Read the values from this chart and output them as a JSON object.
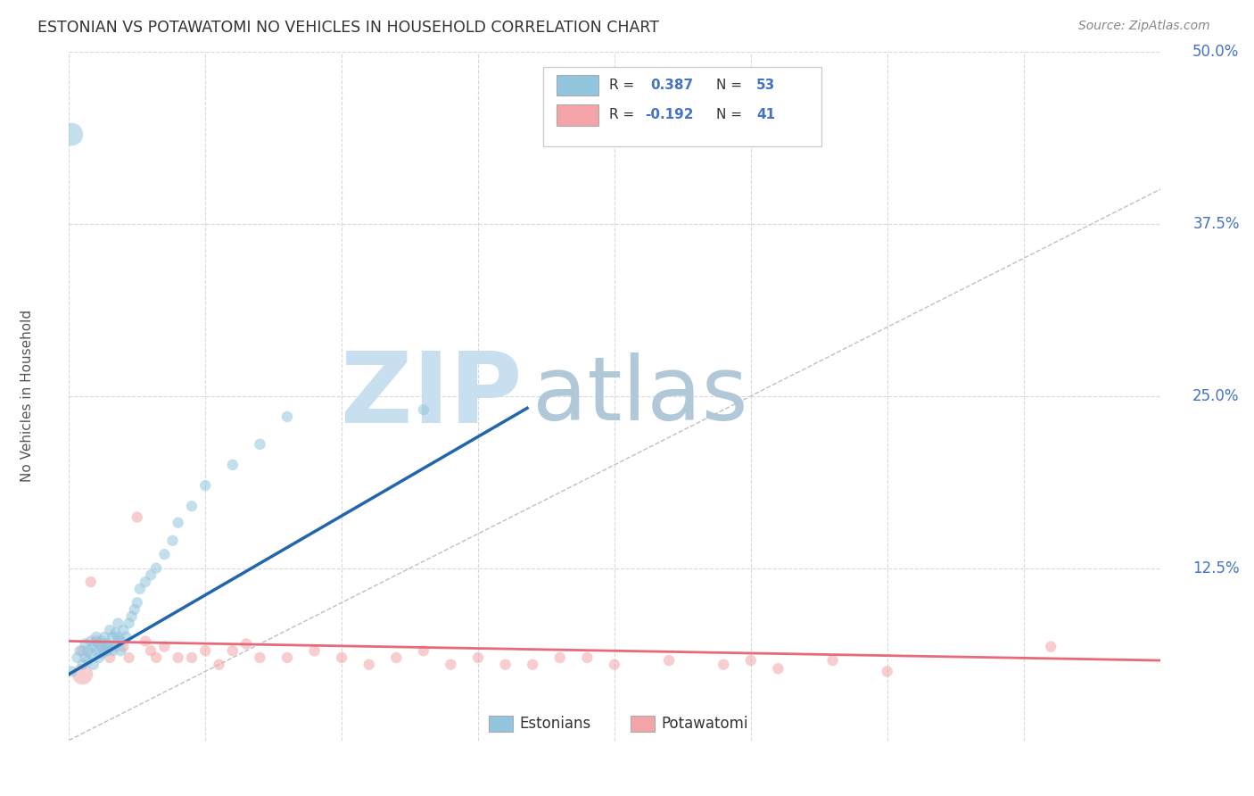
{
  "title": "ESTONIAN VS POTAWATOMI NO VEHICLES IN HOUSEHOLD CORRELATION CHART",
  "source": "Source: ZipAtlas.com",
  "ylabel": "No Vehicles in Household",
  "xlim": [
    0.0,
    0.4
  ],
  "ylim": [
    0.0,
    0.5
  ],
  "blue_R": 0.387,
  "blue_N": 53,
  "pink_R": -0.192,
  "pink_N": 41,
  "blue_color": "#92c5de",
  "pink_color": "#f4a4a8",
  "blue_line_color": "#2166ac",
  "pink_line_color": "#e8697a",
  "title_color": "#333333",
  "axis_label_color": "#555555",
  "tick_color": "#4472c4",
  "grid_color": "#d0d0d0",
  "watermark_zip_color": "#c8dff0",
  "watermark_atlas_color": "#b0c8d8",
  "legend_label_blue": "Estonians",
  "legend_label_pink": "Potawatomi",
  "blue_scatter_x": [
    0.001,
    0.003,
    0.004,
    0.005,
    0.006,
    0.006,
    0.007,
    0.007,
    0.008,
    0.008,
    0.009,
    0.009,
    0.01,
    0.01,
    0.011,
    0.011,
    0.012,
    0.012,
    0.013,
    0.013,
    0.014,
    0.014,
    0.014,
    0.015,
    0.015,
    0.016,
    0.016,
    0.017,
    0.017,
    0.018,
    0.018,
    0.019,
    0.019,
    0.02,
    0.021,
    0.022,
    0.023,
    0.024,
    0.025,
    0.026,
    0.028,
    0.03,
    0.032,
    0.035,
    0.038,
    0.04,
    0.045,
    0.05,
    0.06,
    0.07,
    0.08,
    0.13,
    0.001
  ],
  "blue_scatter_y": [
    0.05,
    0.06,
    0.065,
    0.055,
    0.07,
    0.06,
    0.065,
    0.058,
    0.072,
    0.063,
    0.068,
    0.055,
    0.065,
    0.075,
    0.06,
    0.07,
    0.063,
    0.072,
    0.065,
    0.075,
    0.065,
    0.07,
    0.068,
    0.08,
    0.068,
    0.075,
    0.065,
    0.078,
    0.068,
    0.075,
    0.085,
    0.072,
    0.065,
    0.08,
    0.075,
    0.085,
    0.09,
    0.095,
    0.1,
    0.11,
    0.115,
    0.12,
    0.125,
    0.135,
    0.145,
    0.158,
    0.17,
    0.185,
    0.2,
    0.215,
    0.235,
    0.24,
    0.44
  ],
  "blue_scatter_sizes": [
    80,
    80,
    80,
    80,
    80,
    80,
    80,
    80,
    80,
    80,
    80,
    80,
    80,
    80,
    80,
    80,
    80,
    80,
    80,
    80,
    80,
    80,
    80,
    80,
    80,
    80,
    80,
    80,
    80,
    80,
    80,
    80,
    80,
    80,
    80,
    80,
    80,
    80,
    80,
    80,
    80,
    80,
    80,
    80,
    80,
    80,
    80,
    80,
    80,
    80,
    80,
    80,
    340
  ],
  "pink_scatter_x": [
    0.005,
    0.008,
    0.01,
    0.012,
    0.015,
    0.018,
    0.02,
    0.022,
    0.025,
    0.028,
    0.03,
    0.032,
    0.035,
    0.04,
    0.045,
    0.05,
    0.055,
    0.06,
    0.065,
    0.07,
    0.08,
    0.09,
    0.1,
    0.11,
    0.12,
    0.13,
    0.14,
    0.15,
    0.16,
    0.17,
    0.18,
    0.19,
    0.2,
    0.22,
    0.24,
    0.25,
    0.26,
    0.28,
    0.3,
    0.36,
    0.005
  ],
  "pink_scatter_y": [
    0.065,
    0.115,
    0.072,
    0.068,
    0.06,
    0.072,
    0.068,
    0.06,
    0.162,
    0.072,
    0.065,
    0.06,
    0.068,
    0.06,
    0.06,
    0.065,
    0.055,
    0.065,
    0.07,
    0.06,
    0.06,
    0.065,
    0.06,
    0.055,
    0.06,
    0.065,
    0.055,
    0.06,
    0.055,
    0.055,
    0.06,
    0.06,
    0.055,
    0.058,
    0.055,
    0.058,
    0.052,
    0.058,
    0.05,
    0.068,
    0.048
  ],
  "pink_scatter_sizes": [
    80,
    80,
    80,
    80,
    80,
    80,
    80,
    80,
    80,
    80,
    80,
    80,
    80,
    80,
    80,
    80,
    80,
    80,
    80,
    80,
    80,
    80,
    80,
    80,
    80,
    80,
    80,
    80,
    80,
    80,
    80,
    80,
    80,
    80,
    80,
    80,
    80,
    80,
    80,
    80,
    280
  ],
  "blue_line_x": [
    0.0,
    0.168
  ],
  "blue_line_y_intercept": 0.048,
  "blue_line_slope": 1.15,
  "pink_line_x": [
    0.0,
    0.4
  ],
  "pink_line_y_intercept": 0.072,
  "pink_line_slope": -0.035
}
